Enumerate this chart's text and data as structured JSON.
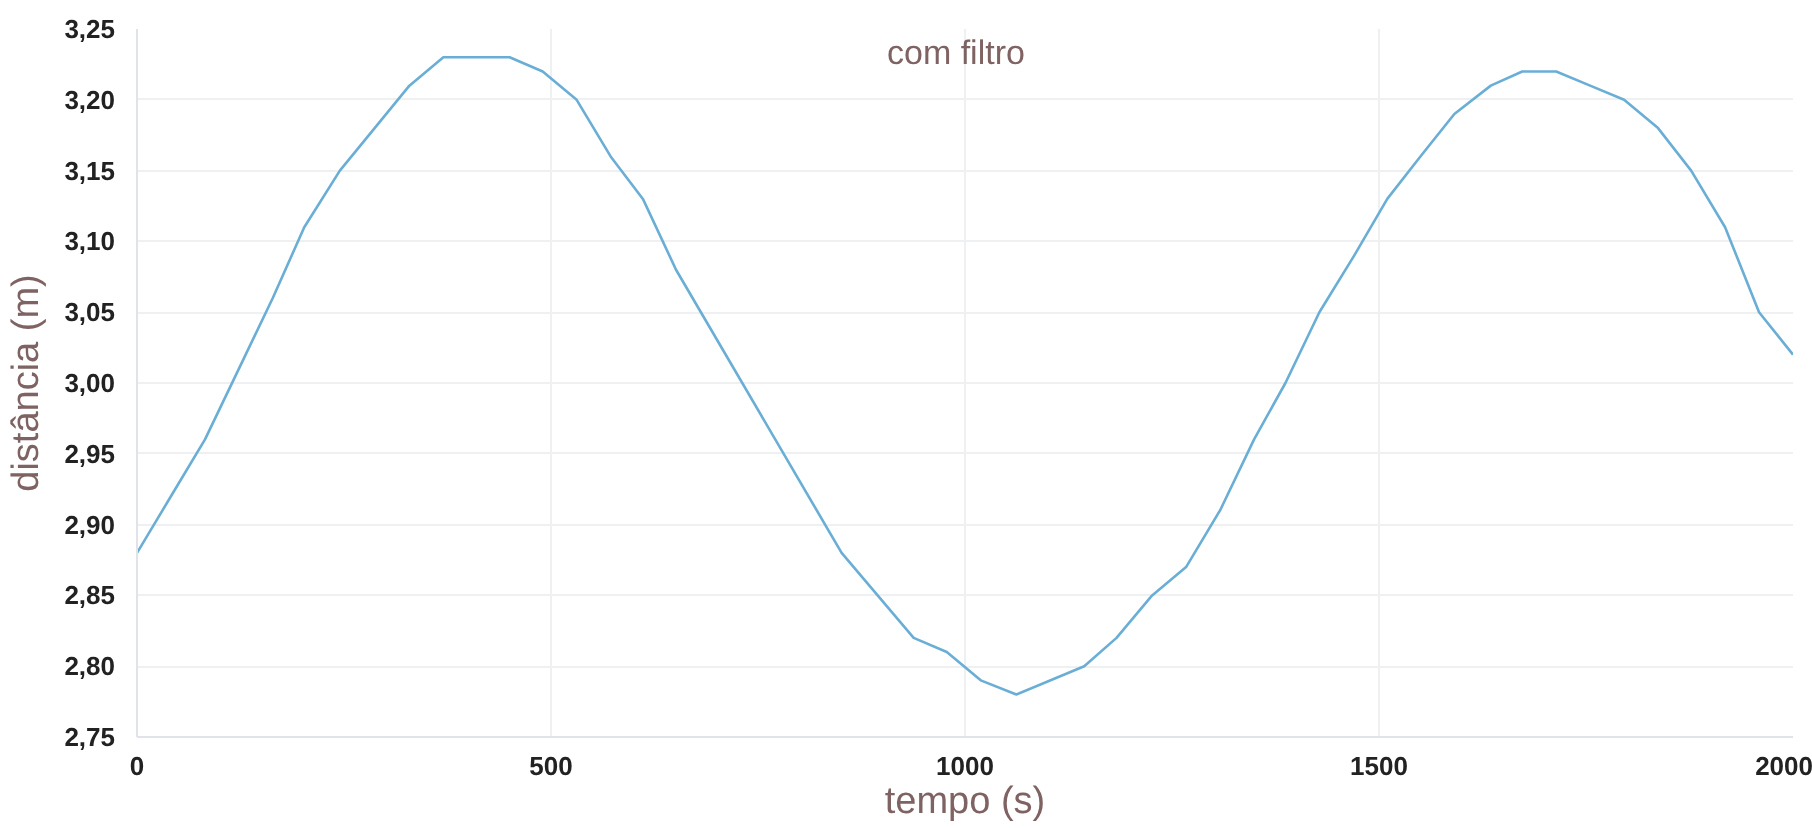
{
  "chart_data": {
    "type": "line",
    "xlabel": "tempo (s)",
    "ylabel": "distância (m)",
    "annotations": [
      "com filtro"
    ],
    "x": [
      0,
      41,
      82,
      123,
      164,
      202,
      245,
      287,
      329,
      370,
      450,
      490,
      531,
      572,
      611,
      651,
      851,
      938,
      978,
      1019,
      1062,
      1144,
      1183,
      1226,
      1267,
      1308,
      1349,
      1387,
      1428,
      1470,
      1510,
      1550,
      1591,
      1635,
      1673,
      1714,
      1755,
      1796,
      1837,
      1877,
      1918,
      1959,
      2000
    ],
    "series": [
      {
        "color": "#6aaed6",
        "values": [
          2.88,
          2.92,
          2.96,
          3.01,
          3.06,
          3.11,
          3.15,
          3.18,
          3.21,
          3.23,
          3.23,
          3.22,
          3.2,
          3.16,
          3.13,
          3.08,
          2.88,
          2.82,
          2.81,
          2.79,
          2.78,
          2.8,
          2.82,
          2.85,
          2.87,
          2.91,
          2.96,
          3.0,
          3.05,
          3.09,
          3.13,
          3.16,
          3.19,
          3.21,
          3.22,
          3.22,
          3.21,
          3.2,
          3.18,
          3.15,
          3.11,
          3.05,
          3.02
        ]
      }
    ],
    "xlim": [
      0,
      2000
    ],
    "xticks": [
      0,
      500,
      1000,
      1500,
      2000
    ],
    "ylim": [
      2.75,
      3.25
    ],
    "yticks": [
      {
        "value": 2.75,
        "label": "2,75"
      },
      {
        "value": 2.8,
        "label": "2,80"
      },
      {
        "value": 2.85,
        "label": "2,85"
      },
      {
        "value": 2.9,
        "label": "2,90"
      },
      {
        "value": 2.95,
        "label": "2,95"
      },
      {
        "value": 3.0,
        "label": "3,00"
      },
      {
        "value": 3.05,
        "label": "3,05"
      },
      {
        "value": 3.1,
        "label": "3,10"
      },
      {
        "value": 3.15,
        "label": "3,15"
      },
      {
        "value": 3.2,
        "label": "3,20"
      },
      {
        "value": 3.25,
        "label": "3,25"
      }
    ],
    "grid": true,
    "marker": "none",
    "line_style": "solid"
  }
}
